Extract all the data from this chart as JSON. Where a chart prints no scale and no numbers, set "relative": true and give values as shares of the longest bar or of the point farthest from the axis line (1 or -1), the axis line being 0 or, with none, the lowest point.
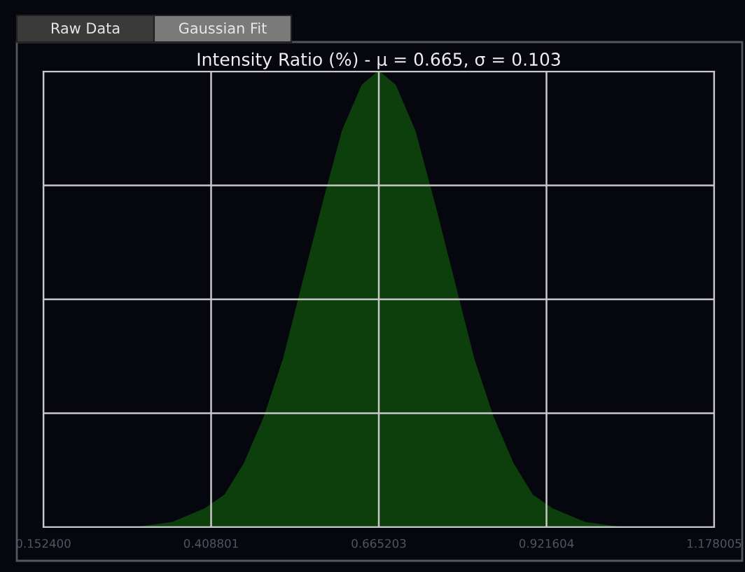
{
  "chart_data": {
    "type": "area",
    "title": "Intensity Ratio (%) - μ = 0.665, σ = 0.103",
    "annotations": [
      "Raw Data",
      "Gaussian Fit"
    ],
    "x": [
      0.1524,
      0.25,
      0.3,
      0.35,
      0.4,
      0.43,
      0.46,
      0.49,
      0.52,
      0.55,
      0.58,
      0.61,
      0.64,
      0.665,
      0.69,
      0.72,
      0.75,
      0.78,
      0.81,
      0.84,
      0.87,
      0.9,
      0.93,
      0.98,
      1.03,
      1.08,
      1.178005
    ],
    "series": [
      {
        "color": "#0d3f0d",
        "values": [
          0,
          0,
          0,
          0.01,
          0.04,
          0.07,
          0.14,
          0.24,
          0.37,
          0.54,
          0.71,
          0.87,
          0.97,
          1,
          0.97,
          0.87,
          0.71,
          0.54,
          0.37,
          0.24,
          0.14,
          0.07,
          0.04,
          0.01,
          0,
          0,
          0
        ]
      }
    ],
    "relative": true,
    "xlim": [
      0.1524,
      1.178005
    ],
    "xticks": [
      {
        "value": 0.1524,
        "label": "0.152400"
      },
      {
        "value": 0.408801,
        "label": "0.408801"
      },
      {
        "value": 0.665203,
        "label": "0.665203"
      },
      {
        "value": 0.921604,
        "label": "0.921604"
      },
      {
        "value": 1.178005,
        "label": "1.178005"
      }
    ],
    "grid": true,
    "legend": false
  }
}
